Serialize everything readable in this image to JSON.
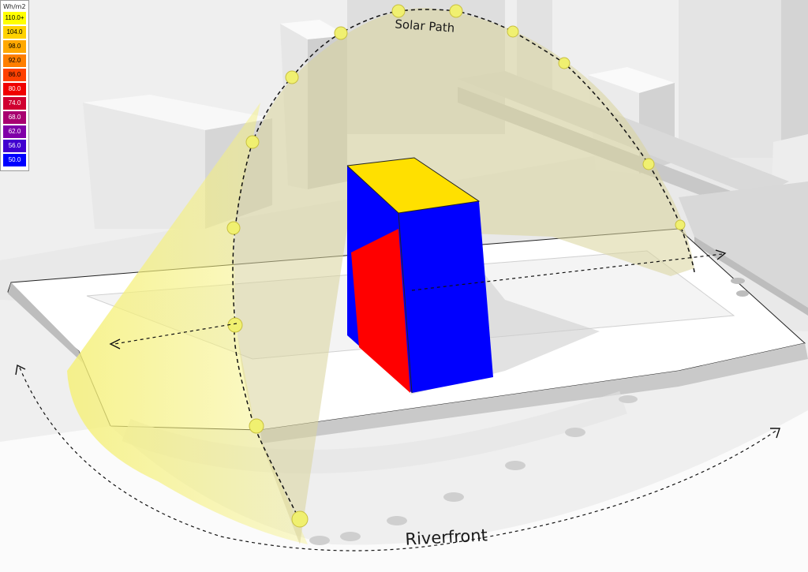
{
  "legend": {
    "unit": "Wh/m2",
    "entries": [
      {
        "label": "110.0+",
        "color": "#ffff00",
        "text": "#000000"
      },
      {
        "label": "104.0",
        "color": "#ffd200",
        "text": "#000000"
      },
      {
        "label": "98.0",
        "color": "#ffa800",
        "text": "#000000"
      },
      {
        "label": "92.0",
        "color": "#ff7e00",
        "text": "#000000"
      },
      {
        "label": "86.0",
        "color": "#ff4000",
        "text": "#000000"
      },
      {
        "label": "80.0",
        "color": "#f00000",
        "text": "#ffffff"
      },
      {
        "label": "74.0",
        "color": "#d00030",
        "text": "#ffffff"
      },
      {
        "label": "68.0",
        "color": "#a80070",
        "text": "#ffffff"
      },
      {
        "label": "62.0",
        "color": "#8000a8",
        "text": "#ffffff"
      },
      {
        "label": "56.0",
        "color": "#4000d0",
        "text": "#ffffff"
      },
      {
        "label": "50.0",
        "color": "#0000ff",
        "text": "#ffffff"
      }
    ]
  },
  "labels": {
    "solar_path": "Solar Path",
    "riverfront": "Riverfront"
  },
  "colors": {
    "roof": "#ffe000",
    "face_blue": "#0000ff",
    "face_red": "#ff0000",
    "sun_marker": "#f0f070",
    "dome": "#d8d49a"
  }
}
